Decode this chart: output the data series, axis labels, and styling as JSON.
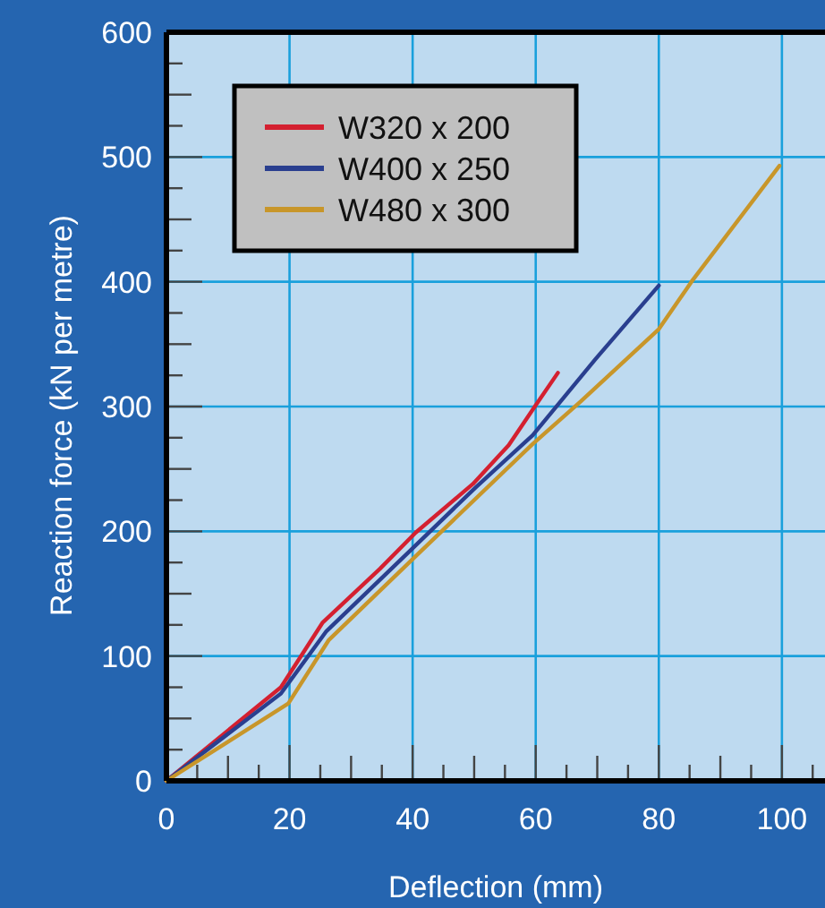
{
  "chart_data": {
    "type": "line",
    "xlabel": "Deflection (mm)",
    "ylabel": "Reaction force (kN per metre)",
    "xlim": [
      0,
      107
    ],
    "ylim": [
      0,
      600
    ],
    "xticks": [
      0,
      {
        "value": 5,
        "label": null
      },
      {
        "value": 10,
        "label": null
      },
      {
        "value": 15,
        "label": null
      },
      20,
      {
        "value": 25,
        "label": null
      },
      {
        "value": 30,
        "label": null
      },
      {
        "value": 35,
        "label": null
      },
      40,
      {
        "value": 45,
        "label": null
      },
      {
        "value": 50,
        "label": null
      },
      {
        "value": 55,
        "label": null
      },
      60,
      {
        "value": 65,
        "label": null
      },
      {
        "value": 70,
        "label": null
      },
      {
        "value": 75,
        "label": null
      },
      80,
      {
        "value": 85,
        "label": null
      },
      {
        "value": 90,
        "label": null
      },
      {
        "value": 95,
        "label": null
      },
      100,
      {
        "value": 105,
        "label": null
      }
    ],
    "yticks": [
      0,
      {
        "value": 25,
        "label": null
      },
      {
        "value": 50,
        "label": null
      },
      {
        "value": 75,
        "label": null
      },
      100,
      {
        "value": 125,
        "label": null
      },
      {
        "value": 150,
        "label": null
      },
      {
        "value": 175,
        "label": null
      },
      200,
      {
        "value": 225,
        "label": null
      },
      {
        "value": 250,
        "label": null
      },
      {
        "value": 275,
        "label": null
      },
      300,
      {
        "value": 325,
        "label": null
      },
      {
        "value": 350,
        "label": null
      },
      {
        "value": 375,
        "label": null
      },
      400,
      {
        "value": 425,
        "label": null
      },
      {
        "value": 450,
        "label": null
      },
      {
        "value": 475,
        "label": null
      },
      500,
      {
        "value": 525,
        "label": null
      },
      {
        "value": 550,
        "label": null
      },
      {
        "value": 575,
        "label": null
      },
      600
    ],
    "grid": true,
    "legend": "top left",
    "marker": "none",
    "line_style": "solid",
    "series": [
      {
        "name": "W320 x 200",
        "color": "#d42030",
        "x": [
          0,
          18.6,
          25.4,
          34.7,
          40.5,
          49.8,
          55.6,
          60,
          63.6
        ],
        "values": [
          0,
          75,
          127,
          170,
          199,
          238,
          269,
          301,
          327
        ]
      },
      {
        "name": "W400 x 250",
        "color": "#2a3f8f",
        "x": [
          0,
          18.6,
          26,
          39.5,
          50.2,
          59.5,
          69.7,
          80
        ],
        "values": [
          0,
          70,
          120,
          184,
          235,
          277,
          338,
          397
        ]
      },
      {
        "name": "W480 x 300",
        "color": "#c8962a",
        "x": [
          0,
          19.8,
          26.4,
          40.5,
          59.5,
          67.3,
          80,
          85.3,
          99.6
        ],
        "values": [
          0,
          62,
          113,
          180,
          270,
          304,
          362,
          400,
          493
        ]
      }
    ]
  }
}
